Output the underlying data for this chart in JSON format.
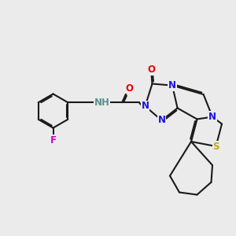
{
  "bg_color": "#ebebeb",
  "bond_color": "#1a1a1a",
  "bond_width": 1.5,
  "atom_colors": {
    "N": "#1414e6",
    "O": "#e60000",
    "S": "#c8a800",
    "F": "#cc00cc",
    "H": "#5a9090"
  },
  "font_size": 8.5,
  "fig_size": [
    3.0,
    3.0
  ],
  "dpi": 100
}
